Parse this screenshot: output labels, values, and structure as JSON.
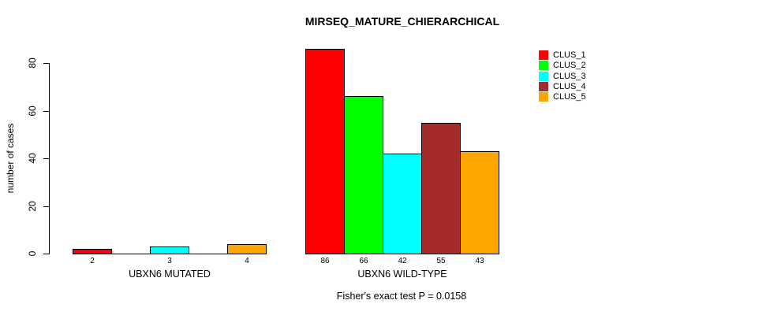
{
  "page": {
    "background_color": "#FFFFFF",
    "text_color": "#000000"
  },
  "chart_data": {
    "type": "bar",
    "title": "MIRSEQ_MATURE_CHIERARCHICAL",
    "ylabel": "number of cases",
    "xlabel": "",
    "ylim": [
      0,
      80
    ],
    "yticks": [
      0,
      20,
      40,
      60,
      80
    ],
    "grid": false,
    "legend_position": "top-right",
    "groups": [
      {
        "label": "UBXN6 MUTATED"
      },
      {
        "label": "UBXN6 WILD-TYPE"
      }
    ],
    "series": [
      {
        "name": "CLUS_1",
        "color": "#FF0000",
        "values": [
          2,
          86
        ]
      },
      {
        "name": "CLUS_2",
        "color": "#00FF00",
        "values": [
          0,
          66
        ]
      },
      {
        "name": "CLUS_3",
        "color": "#00FFFF",
        "values": [
          3,
          42
        ]
      },
      {
        "name": "CLUS_4",
        "color": "#A52A2A",
        "values": [
          0,
          55
        ]
      },
      {
        "name": "CLUS_5",
        "color": "#FFA500",
        "values": [
          4,
          43
        ]
      }
    ],
    "visible_bar_value_labels": [
      "2",
      "3",
      "4",
      "86",
      "66",
      "42",
      "55",
      "43"
    ],
    "bar_border_color": "#000000",
    "footnote": "Fisher's exact test P = 0.0158"
  }
}
